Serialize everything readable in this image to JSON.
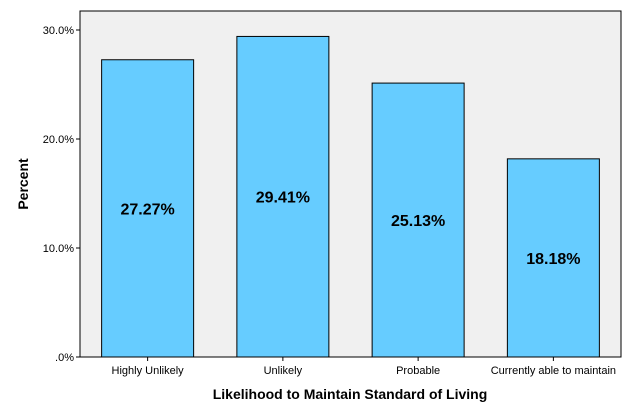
{
  "chart_data": {
    "type": "bar",
    "categories": [
      "Highly Unlikely",
      "Unlikely",
      "Probable",
      "Currently able to maintain"
    ],
    "values": [
      27.27,
      29.41,
      25.13,
      18.18
    ],
    "data_labels": [
      "27.27%",
      "29.41%",
      "25.13%",
      "18.18%"
    ],
    "title": "",
    "xlabel": "Likelihood to Maintain Standard of Living",
    "ylabel": "Percent",
    "ylim": [
      0,
      30
    ],
    "y_ticks": [
      {
        "value": 0,
        "label": ".0%"
      },
      {
        "value": 10,
        "label": "10.0%"
      },
      {
        "value": 20,
        "label": "20.0%"
      },
      {
        "value": 30,
        "label": "30.0%"
      }
    ],
    "grid": false,
    "legend": "none",
    "colors": {
      "bar_fill": "#66CCFF",
      "bar_stroke": "#000000",
      "plot_background": "#F0F0F0",
      "page_background": "#FFFFFF"
    }
  }
}
